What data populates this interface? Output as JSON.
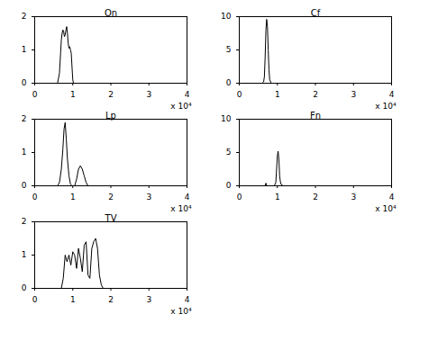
{
  "chart_data": [
    {
      "type": "line",
      "title": "On",
      "color": "#000000",
      "x_label": "x 10⁴",
      "x": [
        0,
        0.6,
        0.65,
        0.68,
        0.7,
        0.72,
        0.74,
        0.76,
        0.78,
        0.8,
        0.82,
        0.84,
        0.86,
        0.88,
        0.9,
        0.92,
        0.94,
        0.96,
        0.98,
        1.0,
        1.02,
        4
      ],
      "values": [
        0,
        0,
        0.3,
        0.9,
        1.3,
        1.5,
        1.6,
        1.55,
        1.4,
        1.45,
        1.6,
        1.7,
        1.5,
        1.2,
        1.05,
        1.1,
        1.0,
        0.9,
        0.5,
        0.1,
        0,
        0
      ],
      "xlim": [
        0,
        4
      ],
      "xticks": [
        0,
        1,
        2,
        3,
        4
      ],
      "ylim": [
        0,
        2
      ],
      "yticks": [
        0,
        1,
        2
      ]
    },
    {
      "type": "line",
      "title": "Cf",
      "color": "#000000",
      "x_label": "x 10⁴",
      "x": [
        0,
        0.6,
        0.64,
        0.66,
        0.68,
        0.7,
        0.72,
        0.74,
        0.76,
        0.78,
        0.8,
        0.84,
        4
      ],
      "values": [
        0,
        0,
        0.2,
        1,
        4,
        8,
        9.6,
        8.5,
        5,
        2,
        0.5,
        0,
        0
      ],
      "xlim": [
        0,
        4
      ],
      "xticks": [
        0,
        1,
        2,
        3,
        4
      ],
      "ylim": [
        0,
        10
      ],
      "yticks": [
        0,
        5,
        10
      ]
    },
    {
      "type": "line",
      "title": "Lp",
      "color": "#000000",
      "x_label": "x 10⁴",
      "x": [
        0,
        0.6,
        0.65,
        0.7,
        0.74,
        0.77,
        0.8,
        0.83,
        0.86,
        0.9,
        0.94,
        0.98,
        1.05,
        1.1,
        1.15,
        1.2,
        1.25,
        1.3,
        1.35,
        1.4,
        4
      ],
      "values": [
        0,
        0,
        0.1,
        0.5,
        1.1,
        1.7,
        1.9,
        1.4,
        0.8,
        0.3,
        0.05,
        0,
        0,
        0.2,
        0.5,
        0.6,
        0.5,
        0.3,
        0.1,
        0,
        0
      ],
      "xlim": [
        0,
        4
      ],
      "xticks": [
        0,
        1,
        2,
        3,
        4
      ],
      "ylim": [
        0,
        2
      ],
      "yticks": [
        0,
        1,
        2
      ]
    },
    {
      "type": "line",
      "title": "Fn",
      "color": "#000000",
      "x_label": "x 10⁴",
      "x": [
        0,
        0.6,
        0.68,
        0.7,
        0.72,
        0.8,
        0.92,
        0.96,
        0.98,
        1.0,
        1.02,
        1.04,
        1.06,
        1.08,
        1.1,
        1.15,
        4
      ],
      "values": [
        0,
        0,
        0,
        0.4,
        0,
        0,
        0,
        0.5,
        2.5,
        4.5,
        5.2,
        4,
        1.5,
        0.6,
        0.2,
        0,
        0
      ],
      "xlim": [
        0,
        4
      ],
      "xticks": [
        0,
        1,
        2,
        3,
        4
      ],
      "ylim": [
        0,
        10
      ],
      "yticks": [
        0,
        5,
        10
      ]
    },
    {
      "type": "line",
      "title": "TV",
      "color": "#000000",
      "x_label": "x 10⁴",
      "x": [
        0,
        0.7,
        0.75,
        0.8,
        0.85,
        0.9,
        0.95,
        1.0,
        1.05,
        1.1,
        1.15,
        1.2,
        1.25,
        1.3,
        1.35,
        1.4,
        1.45,
        1.5,
        1.55,
        1.6,
        1.65,
        1.7,
        1.75,
        1.8,
        4
      ],
      "values": [
        0,
        0,
        0.3,
        1.0,
        0.8,
        1.0,
        0.7,
        1.1,
        1.0,
        0.6,
        1.2,
        0.9,
        0.5,
        1.3,
        1.4,
        0.4,
        0.3,
        1.2,
        1.4,
        1.5,
        1.2,
        0.4,
        0.1,
        0,
        0
      ],
      "xlim": [
        0,
        4
      ],
      "xticks": [
        0,
        1,
        2,
        3,
        4
      ],
      "ylim": [
        0,
        2
      ],
      "yticks": [
        0,
        1,
        2
      ]
    }
  ]
}
